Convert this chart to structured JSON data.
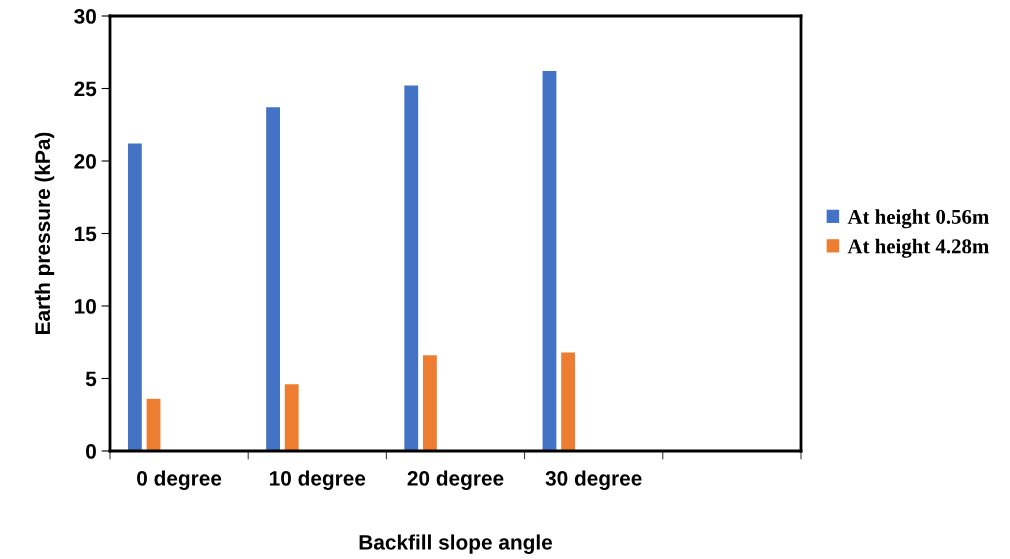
{
  "chart_data": {
    "type": "bar",
    "xlabel": "Backfill slope angle",
    "ylabel": "Earth pressure (kPa)",
    "categories": [
      "0 degree",
      "10 degree",
      "20 degree",
      "30 degree",
      null
    ],
    "series": [
      {
        "name": "At height 0.56m",
        "color": "#4472c4",
        "values": [
          21.2,
          23.7,
          25.2,
          26.2,
          null
        ]
      },
      {
        "name": "At height 4.28m",
        "color": "#ed7d31",
        "values": [
          3.6,
          4.6,
          6.6,
          6.8,
          null
        ]
      }
    ],
    "ylim": [
      0,
      30
    ],
    "yticks": [
      0,
      5,
      10,
      15,
      20,
      25,
      30
    ],
    "grid": false,
    "legend": "right"
  }
}
